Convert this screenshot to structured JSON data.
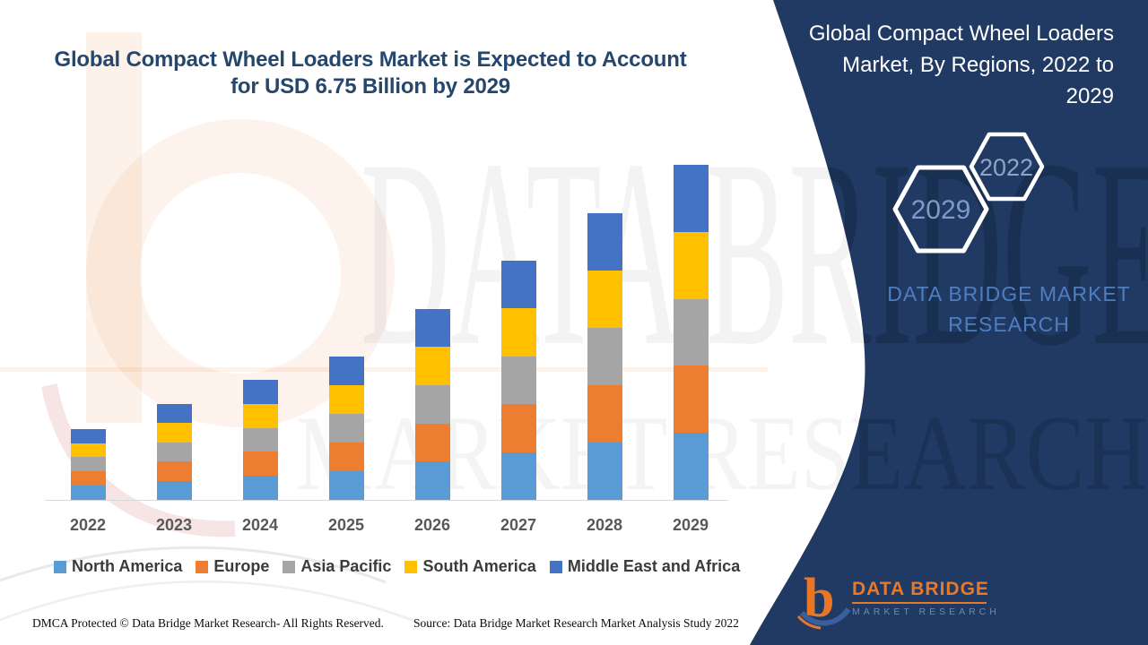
{
  "header": {
    "title_line1": "Global Compact Wheel Loaders Market is Expected to Account",
    "title_line2": "for USD 6.75 Billion by 2029",
    "title_color": "#25476E"
  },
  "panel": {
    "background_color": "#203A64",
    "title_lines": [
      "Global Compact Wheel Loaders",
      "Market, By Regions, 2022 to",
      "2029"
    ],
    "badges": {
      "back_hexagon": "2022",
      "front_hexagon": "2029"
    },
    "brand_line1": "DATA BRIDGE MARKET",
    "brand_line2": "RESEARCH",
    "brand_color": "#4E7EC1"
  },
  "watermark": {
    "line1": "DATA BRIDGE",
    "line2": "MARKET RESEARCH"
  },
  "chart_data": {
    "type": "bar",
    "stacked": true,
    "title": "Global Compact Wheel Loaders Market, By Regions, 2022 to 2029",
    "xlabel": "",
    "ylabel": "",
    "unit": "USD Billion (estimated; 2029 total stated as 6.75)",
    "value_axis_visible": false,
    "gridlines": false,
    "legend_position": "bottom",
    "categories": [
      "2022",
      "2023",
      "2024",
      "2025",
      "2026",
      "2027",
      "2028",
      "2029"
    ],
    "totals_usd_billion": [
      1.43,
      1.93,
      2.42,
      2.89,
      3.85,
      4.82,
      5.78,
      6.75
    ],
    "series": [
      {
        "name": "North America",
        "color": "#5B9BD5",
        "values": [
          0.286,
          0.386,
          0.484,
          0.578,
          0.77,
          0.964,
          1.156,
          1.35
        ]
      },
      {
        "name": "Europe",
        "color": "#ED7D31",
        "values": [
          0.286,
          0.386,
          0.484,
          0.578,
          0.77,
          0.964,
          1.156,
          1.35
        ]
      },
      {
        "name": "Asia Pacific",
        "color": "#A5A5A5",
        "values": [
          0.286,
          0.386,
          0.484,
          0.578,
          0.77,
          0.964,
          1.156,
          1.35
        ]
      },
      {
        "name": "South America",
        "color": "#FFC000",
        "values": [
          0.286,
          0.386,
          0.484,
          0.578,
          0.77,
          0.964,
          1.156,
          1.35
        ]
      },
      {
        "name": "Middle East and Africa",
        "color": "#4472C4",
        "values": [
          0.286,
          0.386,
          0.484,
          0.578,
          0.77,
          0.964,
          1.156,
          1.35
        ]
      }
    ],
    "note": "No value axis or data labels shown; regional segments appear approximately equal within each year. Values estimated from bar pixel heights scaled to 6.75B in 2029."
  },
  "footer": {
    "dmca": "DMCA Protected © Data Bridge Market Research- All Rights Reserved.",
    "source": "Source: Data Bridge Market Research Market Analysis Study 2022"
  },
  "logo": {
    "brand": "DATA BRIDGE",
    "sub": "MARKET RESEARCH"
  }
}
